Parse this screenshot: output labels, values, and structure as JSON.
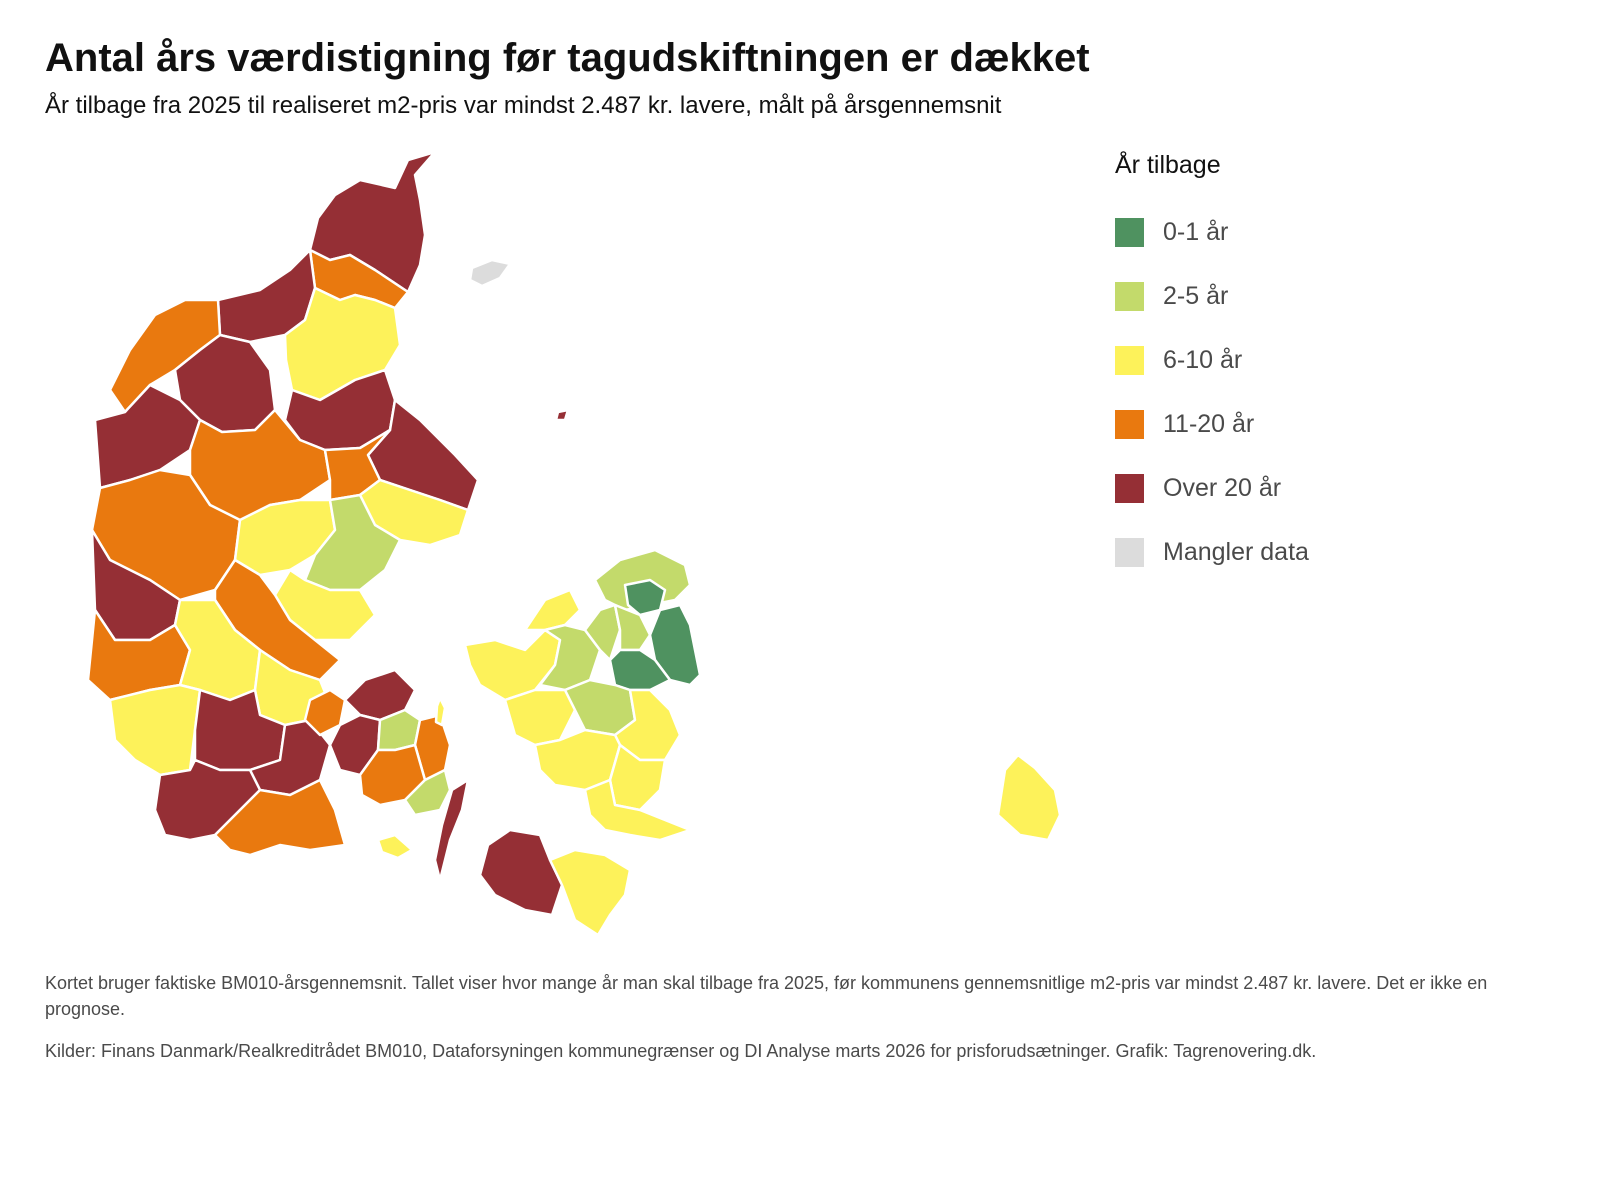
{
  "title": "Antal års værdistigning før tagudskiftningen er dækket",
  "subtitle": "År tilbage fra 2025 til realiseret m2-pris var mindst 2.487 kr. lavere, målt på årsgennemsnit",
  "legend": {
    "title": "År tilbage",
    "items": [
      {
        "label": "0-1 år",
        "color": "#4f9260"
      },
      {
        "label": "2-5 år",
        "color": "#c3da6b"
      },
      {
        "label": "6-10 år",
        "color": "#fdf25a"
      },
      {
        "label": "11-20 år",
        "color": "#e9790f"
      },
      {
        "label": "Over 20 år",
        "color": "#952f35"
      },
      {
        "label": "Mangler data",
        "color": "#dcdcdc"
      }
    ]
  },
  "footer": {
    "note": "Kortet bruger faktiske BM010-årsgennemsnit. Tallet viser hvor mange år man skal tilbage fra 2025, før kommunens gennemsnitlige m2-pris var mindst 2.487 kr. lavere. Det er ikke en prognose.",
    "sources": "Kilder: Finans Danmark/Realkreditrådet BM010, Dataforsyningen kommunegrænser og DI Analyse marts 2026 for prisforudsætninger. Grafik: Tagrenovering.dk."
  }
}
